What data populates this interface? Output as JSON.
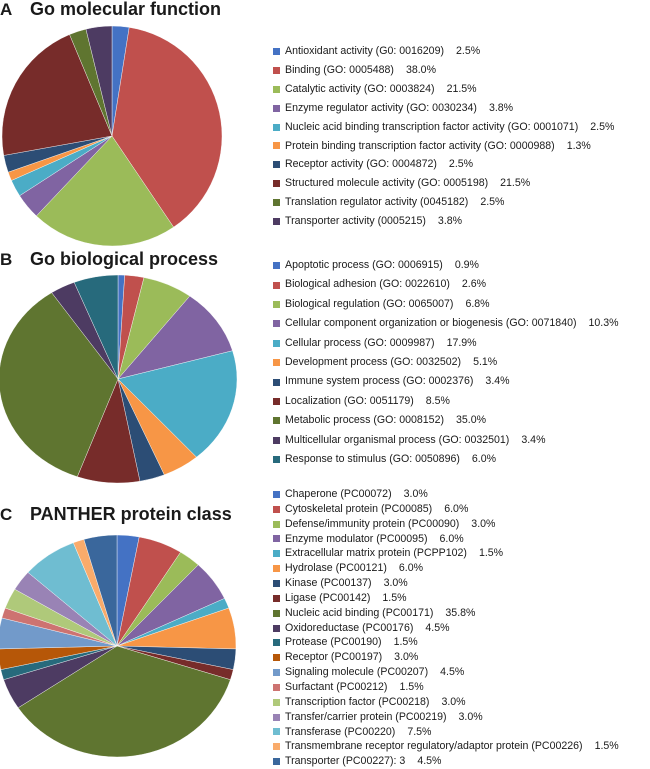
{
  "chart_data": [
    {
      "type": "pie",
      "panel_label": "A",
      "title": "Go molecular function",
      "slices": [
        {
          "label": "Antioxidant activity (G0: 0016209)",
          "value": 2.5,
          "display": "2.5%",
          "color": "#4472c4"
        },
        {
          "label": "Binding (GO: 0005488)",
          "value": 38.0,
          "display": "38.0%",
          "color": "#c0504d"
        },
        {
          "label": "Catalytic activity (GO: 0003824)",
          "value": 21.5,
          "display": "21.5%",
          "color": "#9bbb59"
        },
        {
          "label": "Enzyme regulator activity (GO: 0030234)",
          "value": 3.8,
          "display": "3.8%",
          "color": "#8064a2"
        },
        {
          "label": "Nucleic acid binding transcription factor activity (GO: 0001071)",
          "value": 2.5,
          "display": "2.5%",
          "color": "#4bacc6"
        },
        {
          "label": "Protein binding transcription factor activity (GO: 0000988)",
          "value": 1.3,
          "display": "1.3%",
          "color": "#f79646"
        },
        {
          "label": "Receptor activity (GO: 0004872)",
          "value": 2.5,
          "display": "2.5%",
          "color": "#2c4d75"
        },
        {
          "label": "Structured molecule activity (GO: 0005198)",
          "value": 21.5,
          "display": "21.5%",
          "color": "#772c2a"
        },
        {
          "label": "Translation regulator activity (0045182)",
          "value": 2.5,
          "display": "2.5%",
          "color": "#5f7530"
        },
        {
          "label": "Transporter activity (0005215)",
          "value": 3.8,
          "display": "3.8%",
          "color": "#4d3b62"
        }
      ]
    },
    {
      "type": "pie",
      "panel_label": "B",
      "title": "Go biological process",
      "slices": [
        {
          "label": "Apoptotic process (GO: 0006915)",
          "value": 0.9,
          "display": "0.9%",
          "color": "#4472c4"
        },
        {
          "label": "Biological adhesion (GO: 0022610)",
          "value": 2.6,
          "display": "2.6%",
          "color": "#c0504d"
        },
        {
          "label": "Biological regulation (GO: 0065007)",
          "value": 6.8,
          "display": "6.8%",
          "color": "#9bbb59"
        },
        {
          "label": "Cellular component organization or biogenesis (GO: 0071840)",
          "value": 10.3,
          "display": "10.3%",
          "color": "#8064a2"
        },
        {
          "label": "Cellular process (GO: 0009987)",
          "value": 17.9,
          "display": "17.9%",
          "color": "#4bacc6"
        },
        {
          "label": "Development process (GO: 0032502)",
          "value": 5.1,
          "display": "5.1%",
          "color": "#f79646"
        },
        {
          "label": "Immune system process (GO: 0002376)",
          "value": 3.4,
          "display": "3.4%",
          "color": "#2c4d75"
        },
        {
          "label": "Localization (GO: 0051179)",
          "value": 8.5,
          "display": "8.5%",
          "color": "#772c2a"
        },
        {
          "label": "Metabolic process (GO: 0008152)",
          "value": 35.0,
          "display": "35.0%",
          "color": "#5f7530"
        },
        {
          "label": "Multicellular organismal process (GO: 0032501)",
          "value": 3.4,
          "display": "3.4%",
          "color": "#4d3b62"
        },
        {
          "label": "Response to stimulus (GO: 0050896)",
          "value": 6.0,
          "display": "6.0%",
          "color": "#276a7c"
        }
      ]
    },
    {
      "type": "pie",
      "panel_label": "C",
      "title": "PANTHER protein class",
      "slices": [
        {
          "label": "Chaperone (PC00072)",
          "value": 3.0,
          "display": "3.0%",
          "color": "#4472c4"
        },
        {
          "label": "Cytoskeletal protein (PC00085)",
          "value": 6.0,
          "display": "6.0%",
          "color": "#c0504d"
        },
        {
          "label": "Defense/immunity protein (PC00090)",
          "value": 3.0,
          "display": "3.0%",
          "color": "#9bbb59"
        },
        {
          "label": "Enzyme modulator (PC00095)",
          "value": 6.0,
          "display": "6.0%",
          "color": "#8064a2"
        },
        {
          "label": "Extracellular matrix protein (PCPP102)",
          "value": 1.5,
          "display": "1.5%",
          "color": "#4bacc6"
        },
        {
          "label": "Hydrolase (PC00121)",
          "value": 6.0,
          "display": "6.0%",
          "color": "#f79646"
        },
        {
          "label": "Kinase (PC00137)",
          "value": 3.0,
          "display": "3.0%",
          "color": "#2c4d75"
        },
        {
          "label": "Ligase (PC00142)",
          "value": 1.5,
          "display": "1.5%",
          "color": "#772c2a"
        },
        {
          "label": "Nucleic acid binding (PC00171)",
          "value": 35.8,
          "display": "35.8%",
          "color": "#5f7530"
        },
        {
          "label": "Oxidoreductase (PC00176)",
          "value": 4.5,
          "display": "4.5%",
          "color": "#4d3b62"
        },
        {
          "label": "Protease (PC00190)",
          "value": 1.5,
          "display": "1.5%",
          "color": "#276a7c"
        },
        {
          "label": "Receptor (PC00197)",
          "value": 3.0,
          "display": "3.0%",
          "color": "#b65708"
        },
        {
          "label": "Signaling molecule (PC00207)",
          "value": 4.5,
          "display": "4.5%",
          "color": "#729aca"
        },
        {
          "label": "Surfactant (PC00212)",
          "value": 1.5,
          "display": "1.5%",
          "color": "#cd7371"
        },
        {
          "label": "Transcription factor (PC00218)",
          "value": 3.0,
          "display": "3.0%",
          "color": "#afc97a"
        },
        {
          "label": "Transfer/carrier protein (PC00219)",
          "value": 3.0,
          "display": "3.0%",
          "color": "#9983b5"
        },
        {
          "label": "Transferase (PC00220)",
          "value": 7.5,
          "display": "7.5%",
          "color": "#6fbdd1"
        },
        {
          "label": "Transmembrane receptor regulatory/adaptor protein (PC00226)",
          "value": 1.5,
          "display": "1.5%",
          "color": "#f9ab6b"
        },
        {
          "label": "Transporter (PC00227): 3",
          "value": 4.5,
          "display": "4.5%",
          "color": "#3a679c"
        }
      ]
    }
  ]
}
